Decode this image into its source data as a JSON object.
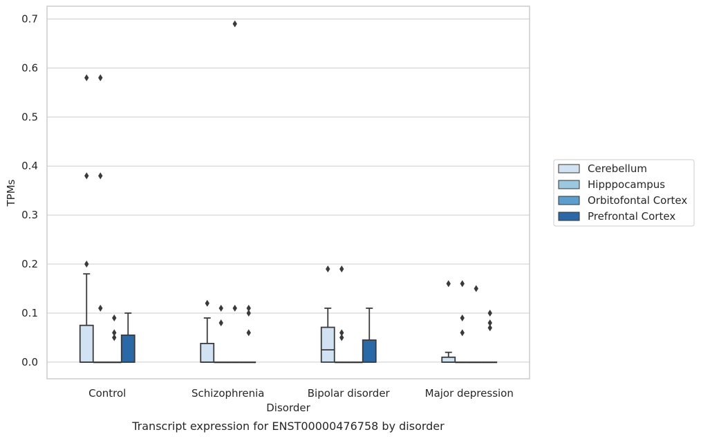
{
  "chart_data": {
    "type": "box",
    "title": "",
    "caption": "Transcript expression for ENST00000476758 by disorder",
    "xlabel": "Disorder",
    "ylabel": "TPMs",
    "ylim": [
      -0.034,
      0.726
    ],
    "yticks": [
      0.0,
      0.1,
      0.2,
      0.3,
      0.4,
      0.5,
      0.6,
      0.7
    ],
    "ytick_labels": [
      "0.0",
      "0.1",
      "0.2",
      "0.3",
      "0.4",
      "0.5",
      "0.6",
      "0.7"
    ],
    "grid": true,
    "legend_position": "right-center",
    "categories": [
      "Control",
      "Schizophrenia",
      "Bipolar disorder",
      "Major depression"
    ],
    "series": [
      {
        "name": "Cerebellum",
        "color": "#d1e2f2",
        "boxes": [
          {
            "q1": 0.0,
            "median": 0.0,
            "q3": 0.075,
            "whisker_low": 0.0,
            "whisker_high": 0.18,
            "outliers": [
              0.2,
              0.38,
              0.58
            ]
          },
          {
            "q1": 0.0,
            "median": 0.0,
            "q3": 0.038,
            "whisker_low": 0.0,
            "whisker_high": 0.09,
            "outliers": [
              0.12
            ]
          },
          {
            "q1": 0.0,
            "median": 0.025,
            "q3": 0.071,
            "whisker_low": 0.0,
            "whisker_high": 0.11,
            "outliers": [
              0.19
            ]
          },
          {
            "q1": 0.0,
            "median": 0.0,
            "q3": 0.01,
            "whisker_low": 0.0,
            "whisker_high": 0.02,
            "outliers": [
              0.16
            ]
          }
        ]
      },
      {
        "name": "Hipppocampus",
        "color": "#9ac8e0",
        "boxes": [
          {
            "q1": 0.0,
            "median": 0.0,
            "q3": 0.0,
            "whisker_low": 0.0,
            "whisker_high": 0.0,
            "outliers": [
              0.11,
              0.38,
              0.58
            ]
          },
          {
            "q1": 0.0,
            "median": 0.0,
            "q3": 0.0,
            "whisker_low": 0.0,
            "whisker_high": 0.0,
            "outliers": [
              0.08,
              0.11
            ]
          },
          {
            "q1": 0.0,
            "median": 0.0,
            "q3": 0.0,
            "whisker_low": 0.0,
            "whisker_high": 0.0,
            "outliers": [
              0.05,
              0.06,
              0.19
            ]
          },
          {
            "q1": 0.0,
            "median": 0.0,
            "q3": 0.0,
            "whisker_low": 0.0,
            "whisker_high": 0.0,
            "outliers": [
              0.06,
              0.09,
              0.16
            ]
          }
        ]
      },
      {
        "name": "Orbitofontal Cortex",
        "color": "#5a9fcd",
        "boxes": [
          {
            "q1": 0.0,
            "median": 0.0,
            "q3": 0.0,
            "whisker_low": 0.0,
            "whisker_high": 0.0,
            "outliers": [
              0.05,
              0.06,
              0.09
            ]
          },
          {
            "q1": 0.0,
            "median": 0.0,
            "q3": 0.0,
            "whisker_low": 0.0,
            "whisker_high": 0.0,
            "outliers": [
              0.11,
              0.69
            ]
          },
          {
            "q1": 0.0,
            "median": 0.0,
            "q3": 0.0,
            "whisker_low": 0.0,
            "whisker_high": 0.0,
            "outliers": []
          },
          {
            "q1": 0.0,
            "median": 0.0,
            "q3": 0.0,
            "whisker_low": 0.0,
            "whisker_high": 0.0,
            "outliers": [
              0.15
            ]
          }
        ]
      },
      {
        "name": "Prefrontal Cortex",
        "color": "#2a69a8",
        "boxes": [
          {
            "q1": 0.0,
            "median": 0.0,
            "q3": 0.055,
            "whisker_low": 0.0,
            "whisker_high": 0.1,
            "outliers": []
          },
          {
            "q1": 0.0,
            "median": 0.0,
            "q3": 0.0,
            "whisker_low": 0.0,
            "whisker_high": 0.0,
            "outliers": [
              0.06,
              0.1,
              0.11
            ]
          },
          {
            "q1": 0.0,
            "median": 0.0,
            "q3": 0.045,
            "whisker_low": 0.0,
            "whisker_high": 0.11,
            "outliers": []
          },
          {
            "q1": 0.0,
            "median": 0.0,
            "q3": 0.0,
            "whisker_low": 0.0,
            "whisker_high": 0.0,
            "outliers": [
              0.07,
              0.08,
              0.1
            ]
          }
        ]
      }
    ]
  }
}
